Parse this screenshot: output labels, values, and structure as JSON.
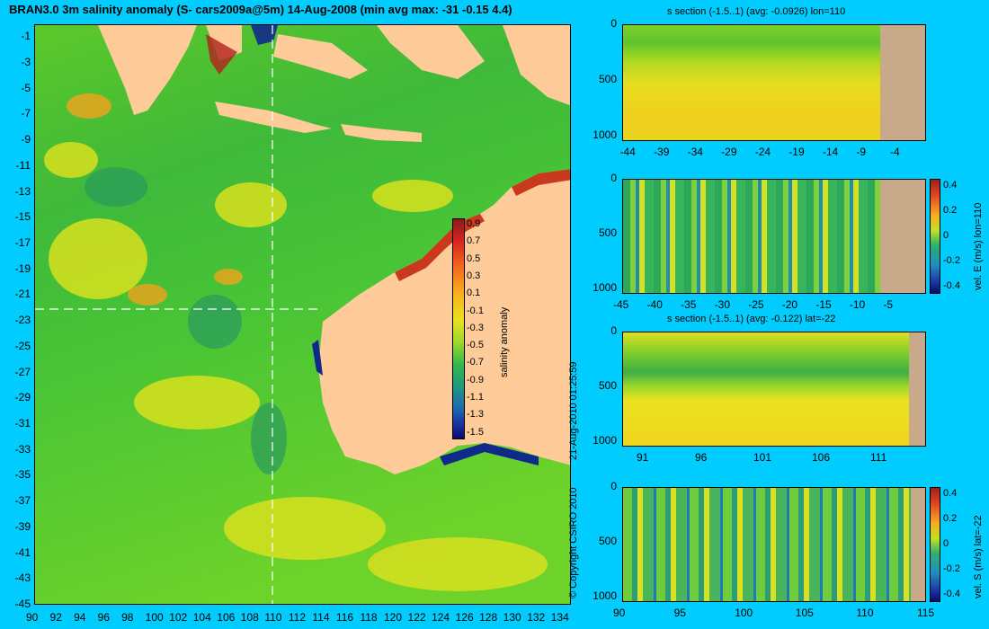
{
  "main_map": {
    "title": "BRAN3.0 3m salinity anomaly (S- cars2009a@5m) 14-Aug-2008 (min avg max: -31 -0.15 4.4)",
    "lon_ticks": [
      "90",
      "92",
      "94",
      "96",
      "98",
      "100",
      "102",
      "104",
      "106",
      "108",
      "110",
      "112",
      "114",
      "116",
      "118",
      "120",
      "122",
      "124",
      "126",
      "128",
      "130",
      "132",
      "134"
    ],
    "lat_ticks": [
      "-1",
      "-3",
      "-5",
      "-7",
      "-9",
      "-11",
      "-13",
      "-15",
      "-17",
      "-19",
      "-21",
      "-23",
      "-25",
      "-27",
      "-29",
      "-31",
      "-33",
      "-35",
      "-37",
      "-39",
      "-41",
      "-43",
      "-45"
    ],
    "colorbar": {
      "label": "salinity anomaly",
      "ticks": [
        "0.9",
        "0.7",
        "0.5",
        "0.3",
        "0.1",
        "-0.1",
        "-0.3",
        "-0.5",
        "-0.7",
        "-0.9",
        "-1.1",
        "-1.3",
        "-1.5"
      ]
    },
    "copyright": "© Copyright CSIRO 2010",
    "timestamp": "21-Aug-2010 01:25:59"
  },
  "panels": [
    {
      "title": "s section (-1.5..1) (avg: -0.0926) lon=110",
      "x_ticks": [
        "-44",
        "-39",
        "-34",
        "-29",
        "-24",
        "-19",
        "-14",
        "-9",
        "-4"
      ],
      "y_ticks": [
        "0",
        "500",
        "1000"
      ],
      "colorbar": null
    },
    {
      "title": "",
      "x_ticks": [
        "-45",
        "-40",
        "-35",
        "-30",
        "-25",
        "-20",
        "-15",
        "-10",
        "-5"
      ],
      "y_ticks": [
        "0",
        "500",
        "1000"
      ],
      "colorbar": {
        "label": "vel. E (m/s) lon=110",
        "ticks": [
          "0.4",
          "0.2",
          "0",
          "-0.2",
          "-0.4"
        ]
      }
    },
    {
      "title": "s section (-1.5..1) (avg: -0.122) lat=-22",
      "x_ticks": [
        "91",
        "96",
        "101",
        "106",
        "111"
      ],
      "y_ticks": [
        "0",
        "500",
        "1000"
      ],
      "colorbar": null
    },
    {
      "title": "",
      "x_ticks": [
        "90",
        "95",
        "100",
        "105",
        "110",
        "115"
      ],
      "y_ticks": [
        "0",
        "500",
        "1000"
      ],
      "colorbar": {
        "label": "vel. S (m/s) lat=-22",
        "ticks": [
          "0.4",
          "0.2",
          "0",
          "-0.2",
          "-0.4"
        ]
      }
    }
  ],
  "chart_data": [
    {
      "type": "heatmap",
      "title": "BRAN3.0 3m salinity anomaly (S- cars2009a@5m) 14-Aug-2008 (min avg max: -31 -0.15 4.4)",
      "xlabel": "",
      "ylabel": "",
      "xlim": [
        90,
        135
      ],
      "ylim": [
        -45,
        0
      ],
      "colorbar_label": "salinity anomaly",
      "colorbar_range": [
        -1.5,
        1.0
      ],
      "section_lines": {
        "lon": 110,
        "lat": -22
      }
    },
    {
      "type": "heatmap",
      "title": "s section (-1.5..1) (avg: -0.0926) lon=110",
      "xlim": [
        -45,
        0
      ],
      "ylim": [
        1050,
        0
      ],
      "colorbar_range": [
        -1.5,
        1.0
      ]
    },
    {
      "type": "heatmap",
      "xlim": [
        -45,
        0
      ],
      "ylim": [
        1050,
        0
      ],
      "colorbar_label": "vel. E (m/s) lon=110",
      "colorbar_range": [
        -0.4,
        0.4
      ]
    },
    {
      "type": "heatmap",
      "title": "s section (-1.5..1) (avg: -0.122) lat=-22",
      "xlim": [
        89,
        115
      ],
      "ylim": [
        1050,
        0
      ],
      "colorbar_range": [
        -1.5,
        1.0
      ]
    },
    {
      "type": "heatmap",
      "xlim": [
        90,
        115
      ],
      "ylim": [
        1050,
        0
      ],
      "colorbar_label": "vel. S (m/s) lat=-22",
      "colorbar_range": [
        -0.4,
        0.4
      ]
    }
  ]
}
